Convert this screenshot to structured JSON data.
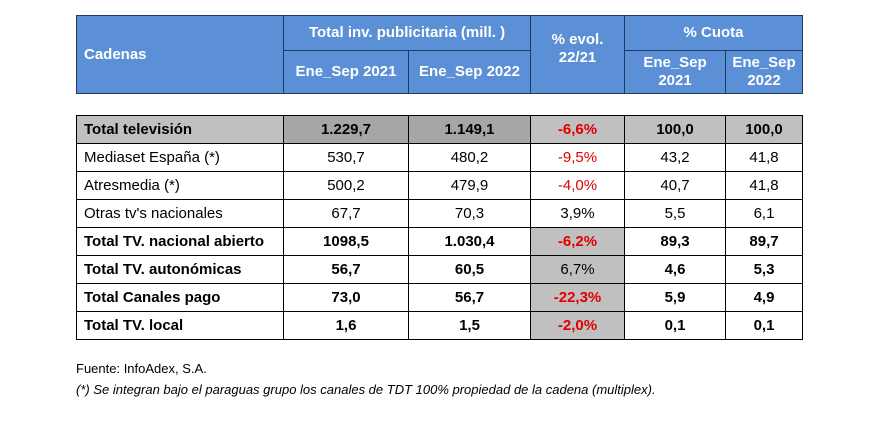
{
  "colors": {
    "header_bg": "#5b8fd6",
    "header_text": "#ffffff",
    "negative": "#e00000",
    "grey_fill": "#c0c0c0",
    "dark_grey_fill": "#a6a6a6"
  },
  "header": {
    "cadenas": "Cadenas",
    "group_inversion": "Total inv. publicitaria (mill. )",
    "inv_2021": "Ene_Sep 2021",
    "inv_2022": "Ene_Sep 2022",
    "evol_line1": "% evol.",
    "evol_line2": "22/21",
    "group_cuota": "% Cuota",
    "cuota_2021_l1": "Ene_Sep",
    "cuota_2021_l2": "2021",
    "cuota_2022_l1": "Ene_Sep",
    "cuota_2022_l2": "2022"
  },
  "rows": [
    {
      "name": "Total televisión",
      "inv_2021": "1.229,7",
      "inv_2022": "1.149,1",
      "evol": "-6,6%",
      "cuota_2021": "100,0",
      "cuota_2022": "100,0"
    },
    {
      "name": "Mediaset España (*)",
      "inv_2021": "530,7",
      "inv_2022": "480,2",
      "evol": "-9,5%",
      "cuota_2021": "43,2",
      "cuota_2022": "41,8"
    },
    {
      "name": "Atresmedia (*)",
      "inv_2021": "500,2",
      "inv_2022": "479,9",
      "evol": "-4,0%",
      "cuota_2021": "40,7",
      "cuota_2022": "41,8"
    },
    {
      "name": "Otras tv's nacionales",
      "inv_2021": "67,7",
      "inv_2022": "70,3",
      "evol": "3,9%",
      "cuota_2021": "5,5",
      "cuota_2022": "6,1"
    },
    {
      "name": "Total TV. nacional abierto",
      "inv_2021": "1098,5",
      "inv_2022": "1.030,4",
      "evol": "-6,2%",
      "cuota_2021": "89,3",
      "cuota_2022": "89,7"
    },
    {
      "name": "Total TV. autonómicas",
      "inv_2021": "56,7",
      "inv_2022": "60,5",
      "evol": "6,7%",
      "cuota_2021": "4,6",
      "cuota_2022": "5,3"
    },
    {
      "name": "Total Canales pago",
      "inv_2021": "73,0",
      "inv_2022": "56,7",
      "evol": "-22,3%",
      "cuota_2021": "5,9",
      "cuota_2022": "4,9"
    },
    {
      "name": "Total TV. local",
      "inv_2021": "1,6",
      "inv_2022": "1,5",
      "evol": "-2,0%",
      "cuota_2021": "0,1",
      "cuota_2022": "0,1"
    }
  ],
  "notes": {
    "source": "Fuente: InfoAdex, S.A.",
    "footnote": "(*) Se integran bajo el paraguas grupo los canales de TDT 100% propiedad de la cadena (multiplex)."
  }
}
